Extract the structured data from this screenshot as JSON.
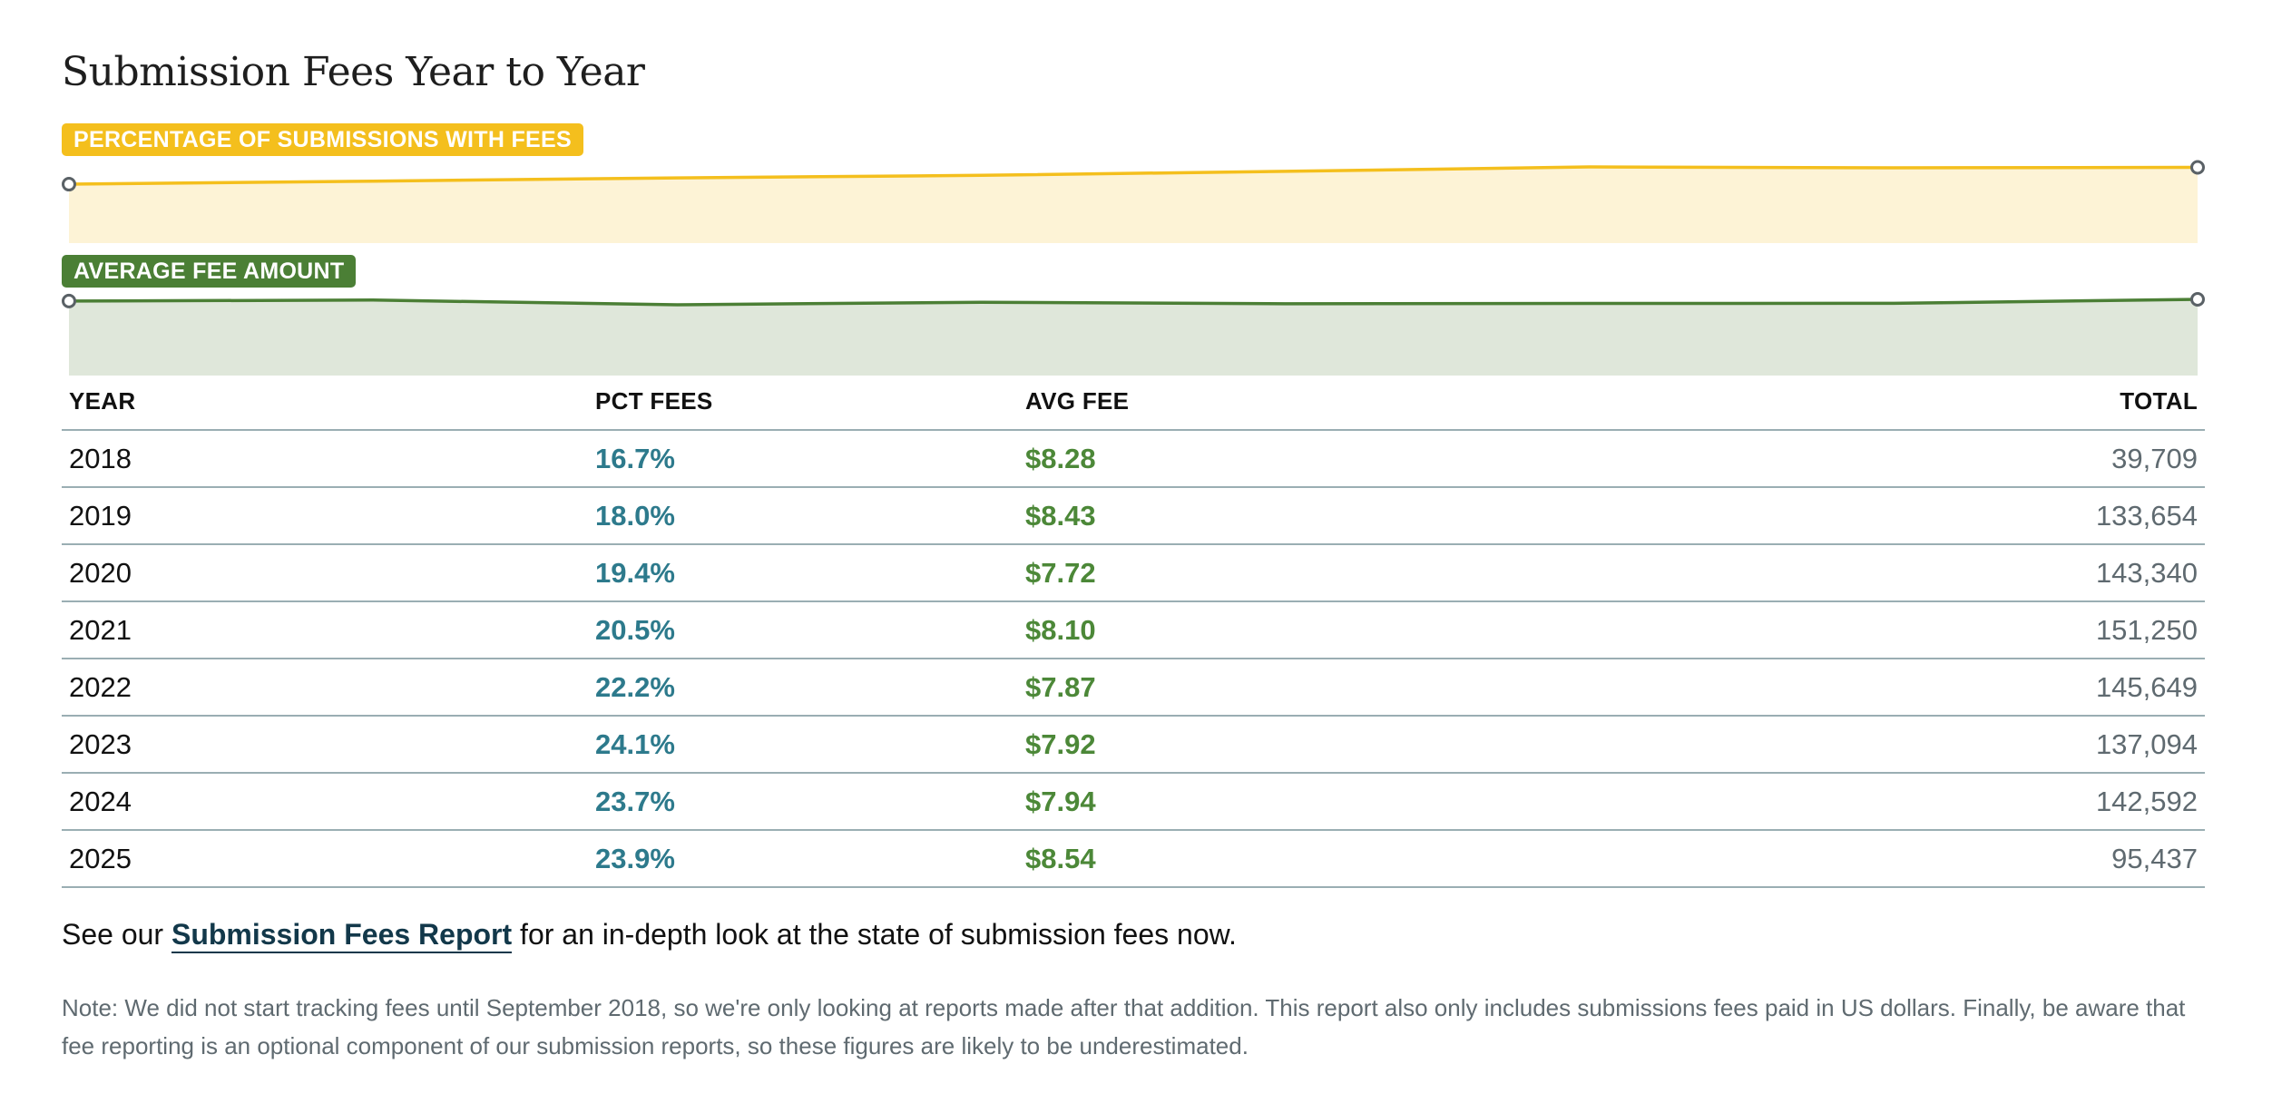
{
  "page": {
    "title": "Submission Fees Year to Year"
  },
  "colors": {
    "pct_line": "#f4bf1d",
    "pct_fill": "#fdf3d6",
    "avg_line": "#4b7f35",
    "avg_fill": "#dfe7da",
    "pct_text": "#2d7a8c",
    "avg_text": "#4c8838",
    "total_text": "#5f6a70",
    "rule": "#9aaeb3"
  },
  "chart_data": [
    {
      "type": "area",
      "title": "PERCENTAGE OF SUBMISSIONS WITH FEES",
      "x": [
        2018,
        2019,
        2020,
        2021,
        2022,
        2023,
        2024,
        2025
      ],
      "values": [
        16.7,
        18.0,
        19.4,
        20.5,
        22.2,
        24.1,
        23.7,
        23.9
      ],
      "unit": "%",
      "ylim": [
        0,
        24.1
      ],
      "grid": false,
      "legend": "none"
    },
    {
      "type": "area",
      "title": "AVERAGE FEE AMOUNT",
      "x": [
        2018,
        2019,
        2020,
        2021,
        2022,
        2023,
        2024,
        2025
      ],
      "values": [
        8.28,
        8.43,
        7.72,
        8.1,
        7.87,
        7.92,
        7.94,
        8.54
      ],
      "unit": "$",
      "ylim": [
        0,
        8.54
      ],
      "grid": false,
      "legend": "none"
    },
    {
      "type": "table",
      "columns": [
        "YEAR",
        "PCT FEES",
        "AVG FEE",
        "TOTAL"
      ],
      "rows": [
        [
          "2018",
          "16.7%",
          "$8.28",
          "39,709"
        ],
        [
          "2019",
          "18.0%",
          "$8.43",
          "133,654"
        ],
        [
          "2020",
          "19.4%",
          "$7.72",
          "143,340"
        ],
        [
          "2021",
          "20.5%",
          "$8.10",
          "151,250"
        ],
        [
          "2022",
          "22.2%",
          "$7.87",
          "145,649"
        ],
        [
          "2023",
          "24.1%",
          "$7.92",
          "137,094"
        ],
        [
          "2024",
          "23.7%",
          "$7.94",
          "142,592"
        ],
        [
          "2025",
          "23.9%",
          "$8.54",
          "95,437"
        ]
      ]
    }
  ],
  "footer": {
    "intro_before": "See our ",
    "report_link": "Submission Fees Report",
    "intro_after": " for an in-depth look at the state of submission fees now.",
    "note": "Note: We did not start tracking fees until September 2018, so we're only looking at reports made after that addition. This report also only includes submissions fees paid in US dollars. Finally, be aware that fee reporting is an optional component of our submission reports, so these figures are likely to be underestimated."
  }
}
